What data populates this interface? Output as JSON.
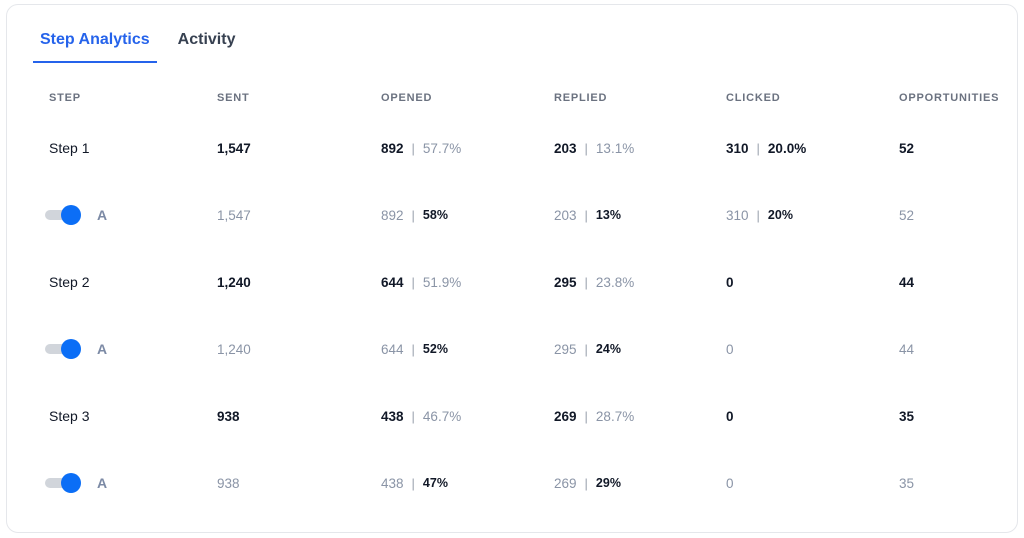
{
  "tabs": [
    {
      "label": "Step Analytics",
      "active": true
    },
    {
      "label": "Activity",
      "active": false
    }
  ],
  "columns": [
    "STEP",
    "SENT",
    "OPENED",
    "REPLIED",
    "CLICKED",
    "OPPORTUNITIES"
  ],
  "accent_color": "#2563eb",
  "toggle_color": "#0b6ef6",
  "rows": [
    {
      "step": "Step 1",
      "sent": "1,547",
      "opened": "892",
      "opened_pct": "57.7%",
      "replied": "203",
      "replied_pct": "13.1%",
      "clicked": "310",
      "clicked_pct": "20.0%",
      "opportunities": "52",
      "variant": {
        "label": "A",
        "enabled": true,
        "sent": "1,547",
        "opened": "892",
        "opened_pct": "58%",
        "replied": "203",
        "replied_pct": "13%",
        "clicked": "310",
        "clicked_pct": "20%",
        "opportunities": "52"
      }
    },
    {
      "step": "Step 2",
      "sent": "1,240",
      "opened": "644",
      "opened_pct": "51.9%",
      "replied": "295",
      "replied_pct": "23.8%",
      "clicked": "0",
      "opportunities": "44",
      "variant": {
        "label": "A",
        "enabled": true,
        "sent": "1,240",
        "opened": "644",
        "opened_pct": "52%",
        "replied": "295",
        "replied_pct": "24%",
        "clicked": "0",
        "opportunities": "44"
      }
    },
    {
      "step": "Step 3",
      "sent": "938",
      "opened": "438",
      "opened_pct": "46.7%",
      "replied": "269",
      "replied_pct": "28.7%",
      "clicked": "0",
      "opportunities": "35",
      "variant": {
        "label": "A",
        "enabled": true,
        "sent": "938",
        "opened": "438",
        "opened_pct": "47%",
        "replied": "269",
        "replied_pct": "29%",
        "clicked": "0",
        "opportunities": "35"
      }
    }
  ]
}
